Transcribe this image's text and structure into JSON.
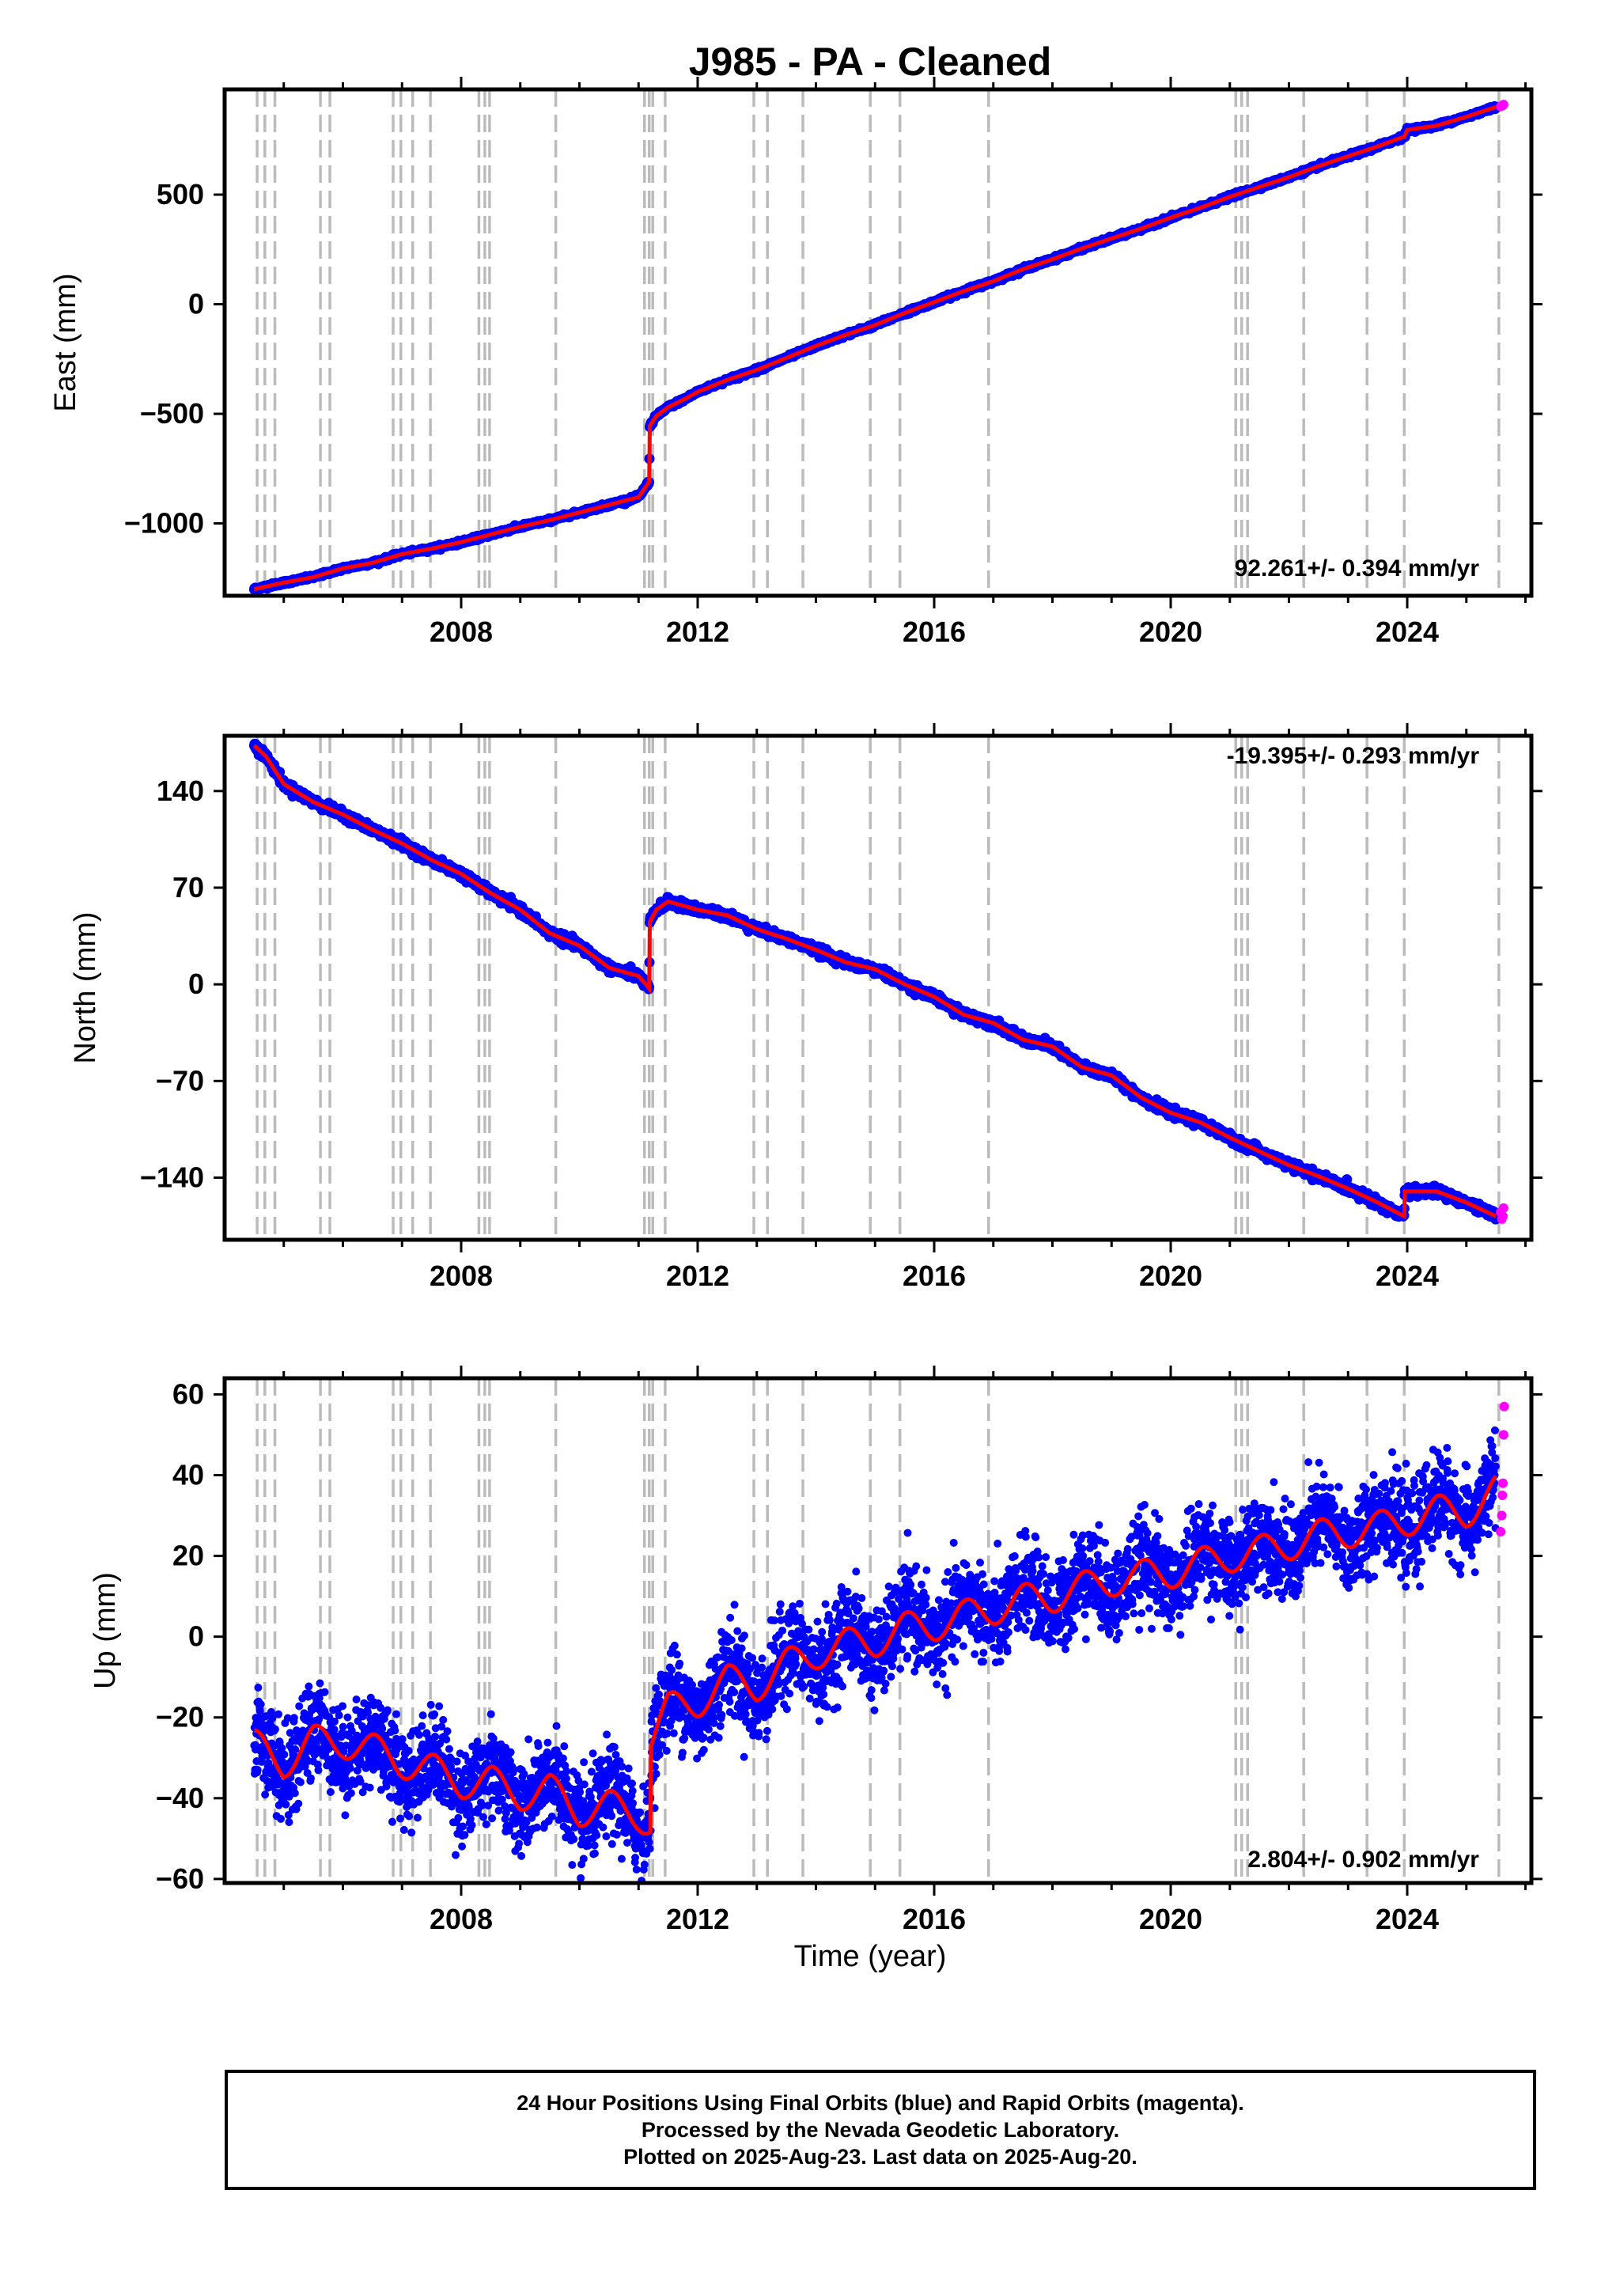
{
  "figure": {
    "title": "J985  - PA - Cleaned",
    "xlabel": "Time (year)",
    "caption": [
      "24 Hour Positions Using Final Orbits (blue) and Rapid Orbits (magenta).",
      "Processed by the Nevada Geodetic Laboratory.",
      "Plotted on 2025-Aug-23. Last data on 2025-Aug-20."
    ]
  },
  "colors": {
    "final": "#0000ff",
    "rapid": "#ff00ff",
    "model": "#ff0000",
    "steps": "#bbbbbb"
  },
  "chart_data": [
    {
      "type": "scatter",
      "ylabel": "East (mm)",
      "rate": "92.261+/- 0.394 mm/yr",
      "xlim": [
        2004.0,
        2026.1
      ],
      "ylim": [
        -1330,
        980
      ],
      "yticks": [
        500,
        0,
        -500,
        -1000
      ],
      "ytick_labels": [
        "500",
        "0",
        "−500",
        "−1000"
      ],
      "xticks": [
        2008,
        2012,
        2016,
        2020,
        2024
      ],
      "step_epochs": [
        2004.55,
        2004.68,
        2004.85,
        2005.62,
        2005.78,
        2006.85,
        2006.98,
        2007.18,
        2007.48,
        2008.3,
        2008.4,
        2008.48,
        2009.6,
        2011.1,
        2011.18,
        2011.24,
        2011.45,
        2012.95,
        2013.18,
        2013.78,
        2014.92,
        2015.42,
        2016.92,
        2021.1,
        2021.2,
        2021.3,
        2022.25,
        2023.32,
        2023.95,
        2025.55
      ],
      "series": [
        {
          "name": "Final Orbits",
          "x": [
            2004.5,
            2005.0,
            2005.5,
            2006.0,
            2006.5,
            2007.0,
            2007.5,
            2008.0,
            2008.5,
            2009.0,
            2009.5,
            2010.0,
            2010.5,
            2011.0,
            2011.18,
            2011.19,
            2011.3,
            2011.5,
            2011.8,
            2012.0,
            2012.5,
            2013.0,
            2013.5,
            2014.0,
            2014.5,
            2015.0,
            2015.5,
            2016.0,
            2016.5,
            2017.0,
            2017.5,
            2018.0,
            2018.5,
            2019.0,
            2019.5,
            2020.0,
            2020.5,
            2021.0,
            2021.5,
            2022.0,
            2022.5,
            2023.0,
            2023.5,
            2023.95,
            2024.0,
            2024.5,
            2025.0,
            2025.5
          ],
          "values": [
            -1300,
            -1270,
            -1245,
            -1205,
            -1180,
            -1140,
            -1115,
            -1085,
            -1050,
            -1015,
            -985,
            -950,
            -915,
            -880,
            -810,
            -555,
            -510,
            -470,
            -430,
            -400,
            -345,
            -300,
            -245,
            -190,
            -140,
            -95,
            -40,
            10,
            60,
            105,
            160,
            205,
            255,
            300,
            345,
            395,
            440,
            490,
            535,
            580,
            630,
            675,
            720,
            765,
            795,
            815,
            855,
            900
          ]
        },
        {
          "name": "Rapid Orbits",
          "x": [
            2025.58,
            2025.6,
            2025.62,
            2025.63
          ],
          "values": [
            902,
            905,
            908,
            911
          ]
        }
      ]
    },
    {
      "type": "scatter",
      "ylabel": "North (mm)",
      "rate": "-19.395+/- 0.293 mm/yr",
      "xlim": [
        2004.0,
        2026.1
      ],
      "ylim": [
        -185,
        180
      ],
      "yticks": [
        140,
        70,
        0,
        -70,
        -140
      ],
      "ytick_labels": [
        "140",
        "70",
        "0",
        "−70",
        "−140"
      ],
      "xticks": [
        2008,
        2012,
        2016,
        2020,
        2024
      ],
      "step_epochs": [
        2004.55,
        2004.68,
        2004.85,
        2005.62,
        2005.78,
        2006.85,
        2006.98,
        2007.18,
        2007.48,
        2008.3,
        2008.4,
        2008.48,
        2009.6,
        2011.1,
        2011.18,
        2011.24,
        2011.45,
        2012.95,
        2013.18,
        2013.78,
        2014.92,
        2015.42,
        2016.92,
        2021.1,
        2021.2,
        2021.3,
        2022.25,
        2023.32,
        2023.95,
        2025.55
      ],
      "series": [
        {
          "name": "Final Orbits",
          "x": [
            2004.5,
            2004.7,
            2005.0,
            2005.5,
            2006.0,
            2006.5,
            2007.0,
            2007.5,
            2008.0,
            2008.5,
            2009.0,
            2009.5,
            2010.0,
            2010.5,
            2011.0,
            2011.18,
            2011.19,
            2011.3,
            2011.5,
            2012.0,
            2012.5,
            2013.0,
            2013.5,
            2014.0,
            2014.5,
            2015.0,
            2015.5,
            2016.0,
            2016.5,
            2017.0,
            2017.5,
            2018.0,
            2018.5,
            2019.0,
            2019.5,
            2020.0,
            2020.5,
            2021.0,
            2021.5,
            2022.0,
            2022.5,
            2023.0,
            2023.5,
            2023.95,
            2023.96,
            2024.5,
            2025.0,
            2025.5
          ],
          "values": [
            173,
            165,
            145,
            132,
            123,
            112,
            102,
            90,
            80,
            66,
            54,
            37,
            28,
            12,
            6,
            -3,
            45,
            54,
            60,
            54,
            50,
            40,
            33,
            25,
            16,
            11,
            0,
            -9,
            -22,
            -28,
            -40,
            -45,
            -60,
            -66,
            -82,
            -93,
            -100,
            -111,
            -121,
            -131,
            -139,
            -148,
            -158,
            -168,
            -150,
            -150,
            -158,
            -168
          ]
        },
        {
          "name": "Rapid Orbits",
          "x": [
            2025.58,
            2025.6,
            2025.62,
            2025.63
          ],
          "values": [
            -165,
            -170,
            -168,
            -162
          ]
        }
      ]
    },
    {
      "type": "scatter",
      "ylabel": "Up (mm)",
      "rate": "2.804+/- 0.902 mm/yr",
      "xlim": [
        2004.0,
        2026.1
      ],
      "ylim": [
        -61,
        64
      ],
      "yticks": [
        60,
        40,
        20,
        0,
        -20,
        -40,
        -60
      ],
      "ytick_labels": [
        "60",
        "40",
        "20",
        "0",
        "−20",
        "−40",
        "−60"
      ],
      "xticks": [
        2008,
        2012,
        2016,
        2020,
        2024
      ],
      "step_epochs": [
        2004.55,
        2004.68,
        2004.85,
        2005.62,
        2005.78,
        2006.85,
        2006.98,
        2007.18,
        2007.48,
        2008.3,
        2008.4,
        2008.48,
        2009.6,
        2011.1,
        2011.18,
        2011.24,
        2011.45,
        2012.95,
        2013.18,
        2013.78,
        2014.92,
        2015.42,
        2016.92,
        2021.1,
        2021.2,
        2021.3,
        2022.25,
        2023.32,
        2023.95,
        2025.55
      ],
      "series": [
        {
          "name": "Final Orbits",
          "x": [
            2004.5,
            2005.0,
            2005.5,
            2006.0,
            2006.5,
            2007.0,
            2007.5,
            2008.0,
            2008.5,
            2009.0,
            2009.5,
            2010.0,
            2010.5,
            2011.0,
            2011.2,
            2011.21,
            2011.5,
            2012.0,
            2012.5,
            2013.0,
            2013.5,
            2014.0,
            2014.5,
            2015.0,
            2015.5,
            2016.0,
            2016.5,
            2017.0,
            2017.5,
            2018.0,
            2018.5,
            2019.0,
            2019.5,
            2020.0,
            2020.5,
            2021.0,
            2021.5,
            2022.0,
            2022.5,
            2023.0,
            2023.5,
            2024.0,
            2024.5,
            2025.0,
            2025.5
          ],
          "values": [
            -27,
            -31,
            -26,
            -26,
            -28,
            -31,
            -33,
            -36,
            -36,
            -39,
            -38,
            -43,
            -42,
            -44,
            -46,
            -25,
            -18,
            -16,
            -11,
            -12,
            -7,
            -4,
            -2,
            -1,
            2,
            3,
            5,
            7,
            9,
            10,
            12,
            14,
            15,
            16,
            18,
            20,
            21,
            23,
            25,
            26,
            27,
            29,
            31,
            31,
            36
          ]
        },
        {
          "name": "Rapid Orbits",
          "x": [
            2025.58,
            2025.6,
            2025.61,
            2025.62,
            2025.63,
            2025.64
          ],
          "values": [
            26,
            30,
            35,
            38,
            50,
            57
          ]
        }
      ]
    }
  ]
}
